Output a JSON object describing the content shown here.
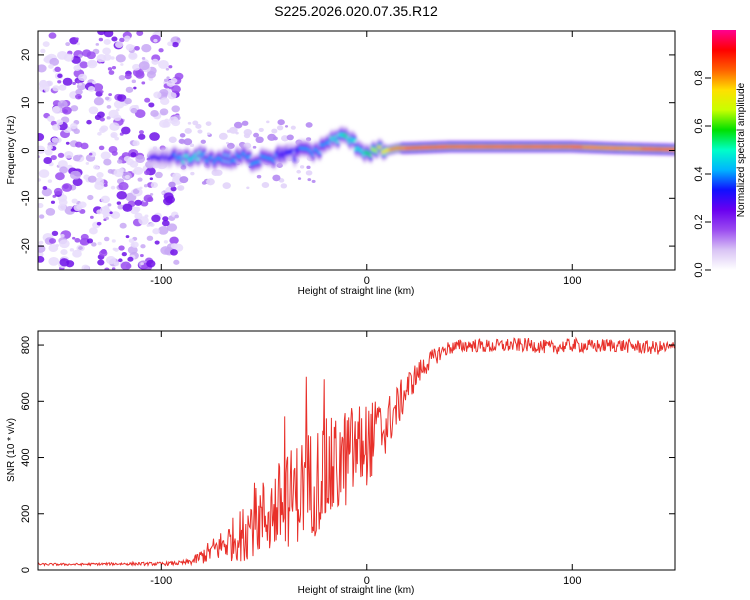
{
  "figure_title": "S225.2026.020.07.35.R12",
  "chart_data": [
    {
      "type": "heatmap",
      "title": "",
      "xlabel": "Height of straight line (km)",
      "ylabel": "Frequency (Hz)",
      "xlim": [
        -160,
        150
      ],
      "ylim": [
        -25,
        25
      ],
      "x_ticks": [
        -100,
        0,
        100
      ],
      "y_ticks": [
        -20,
        -10,
        0,
        10,
        20
      ],
      "colorbar": {
        "label": "Normalized spectral amplitude",
        "range": [
          0,
          1
        ],
        "ticks": [
          "0.0",
          "0.2",
          "0.4",
          "0.6",
          "0.8"
        ],
        "tick_values": [
          0.0,
          0.2,
          0.4,
          0.6,
          0.8
        ],
        "colors": [
          "#ffffff",
          "#d9c4f5",
          "#9b4cf0",
          "#6a00f0",
          "#1010ff",
          "#00b4ff",
          "#00ffc8",
          "#00e000",
          "#c8ff00",
          "#ffe000",
          "#ff6000",
          "#ff0000",
          "#ff0090"
        ]
      },
      "noise_region_x": [
        -160,
        -95
      ],
      "ridge": {
        "x": [
          -105,
          -100,
          -95,
          -90,
          -85,
          -80,
          -75,
          -70,
          -65,
          -60,
          -55,
          -50,
          -45,
          -40,
          -35,
          -30,
          -25,
          -20,
          -15,
          -10,
          -5,
          0,
          5,
          10,
          15,
          20,
          40,
          60,
          80,
          100,
          120,
          140,
          150
        ],
        "frequency": [
          -2,
          -2,
          -1.5,
          -1.5,
          -2,
          -1,
          -2,
          -1.5,
          -2,
          -1,
          -2.5,
          -1,
          -1.5,
          -0.5,
          -1,
          0.5,
          -0.5,
          1.5,
          2.5,
          3,
          1,
          -0.5,
          0,
          0,
          0.5,
          0.5,
          0.8,
          0.8,
          0.8,
          0.8,
          0.5,
          0.3,
          0.2
        ],
        "amplitude": [
          0.3,
          0.3,
          0.35,
          0.45,
          0.5,
          0.45,
          0.4,
          0.42,
          0.4,
          0.38,
          0.42,
          0.4,
          0.38,
          0.36,
          0.35,
          0.4,
          0.38,
          0.42,
          0.5,
          0.55,
          0.5,
          0.55,
          0.7,
          0.78,
          0.82,
          0.88,
          0.9,
          0.9,
          0.9,
          0.88,
          0.86,
          0.88,
          0.88
        ]
      }
    },
    {
      "type": "line",
      "title": "",
      "xlabel": "Height of straight line (km)",
      "ylabel": "SNR (10 * v/v)",
      "xlim": [
        -160,
        150
      ],
      "ylim": [
        0,
        850
      ],
      "x_ticks": [
        -100,
        0,
        100
      ],
      "y_ticks": [
        0,
        200,
        400,
        600,
        800
      ],
      "series": [
        {
          "name": "SNR",
          "color": "#e8302a",
          "x": [
            -160,
            -140,
            -120,
            -100,
            -90,
            -85,
            -80,
            -75,
            -70,
            -65,
            -60,
            -55,
            -50,
            -45,
            -40,
            -35,
            -30,
            -25,
            -20,
            -15,
            -10,
            -5,
            0,
            5,
            10,
            15,
            20,
            25,
            30,
            35,
            40,
            50,
            60,
            70,
            80,
            90,
            100,
            110,
            120,
            130,
            140,
            150
          ],
          "y": [
            20,
            20,
            22,
            22,
            25,
            30,
            50,
            70,
            90,
            110,
            130,
            170,
            190,
            210,
            240,
            270,
            300,
            320,
            340,
            360,
            400,
            430,
            450,
            480,
            520,
            580,
            650,
            700,
            740,
            770,
            790,
            800,
            795,
            800,
            800,
            790,
            800,
            795,
            800,
            795,
            790,
            790
          ],
          "spread": [
            4,
            4,
            5,
            6,
            8,
            12,
            30,
            45,
            60,
            80,
            100,
            120,
            140,
            160,
            170,
            180,
            190,
            200,
            200,
            190,
            180,
            170,
            150,
            130,
            100,
            80,
            60,
            45,
            35,
            30,
            25,
            25,
            25,
            25,
            25,
            25,
            25,
            25,
            25,
            25,
            25,
            25
          ]
        }
      ]
    }
  ]
}
